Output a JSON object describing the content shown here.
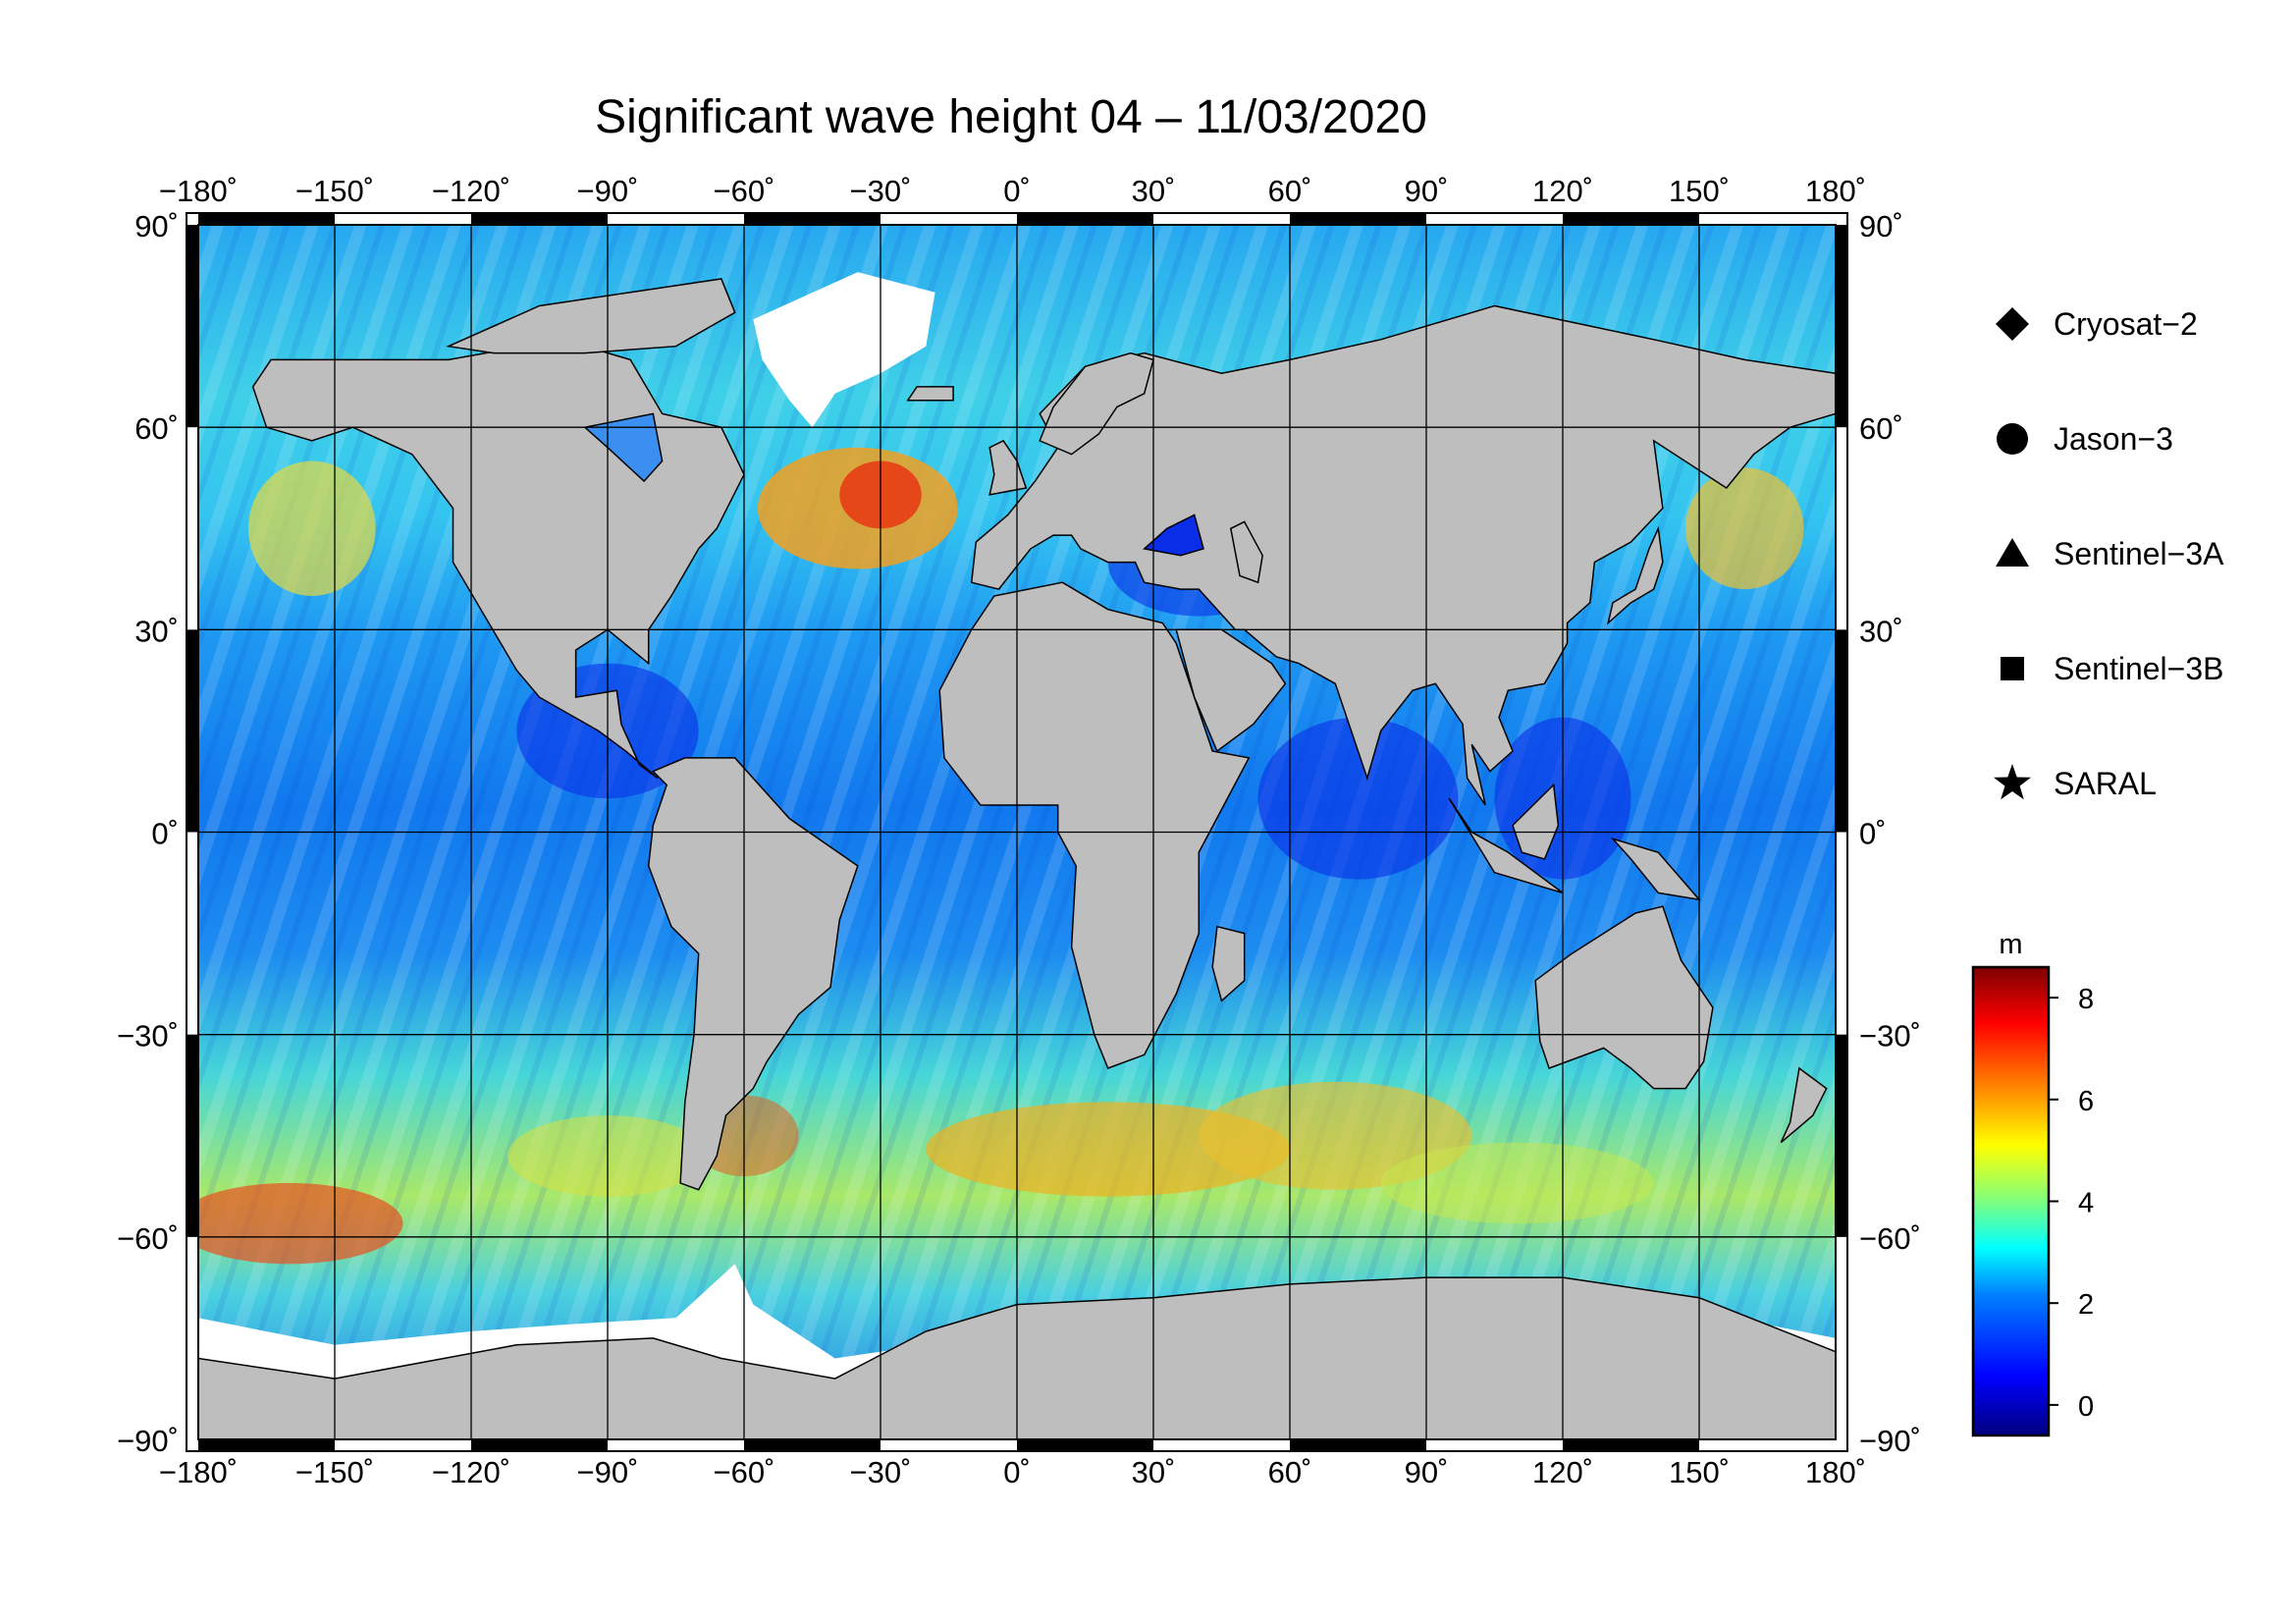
{
  "title": "Significant wave height 04 – 11/03/2020",
  "map": {
    "lon_range": [
      -180,
      180
    ],
    "lat_range": [
      -90,
      90
    ],
    "lon_ticks": [
      -180,
      -150,
      -120,
      -90,
      -60,
      -30,
      0,
      30,
      60,
      90,
      120,
      150,
      180
    ],
    "lat_ticks": [
      90,
      60,
      30,
      0,
      -30,
      -60,
      -90
    ],
    "lon_tick_labels": [
      "−180˚",
      "−150˚",
      "−120˚",
      "−90˚",
      "−60˚",
      "−30˚",
      "0˚",
      "30˚",
      "60˚",
      "90˚",
      "120˚",
      "150˚",
      "180˚"
    ],
    "lat_tick_labels": [
      "90˚",
      "60˚",
      "30˚",
      "0˚",
      "−30˚",
      "−60˚",
      "−90˚"
    ],
    "grid": true,
    "land_color": "#bebebe",
    "ice_color": "#ffffff",
    "projection": "equirectangular"
  },
  "legend": {
    "placement": "right",
    "items": [
      {
        "label": "Cryosat−2",
        "symbol": "diamond-icon"
      },
      {
        "label": "Jason−3",
        "symbol": "circle-icon"
      },
      {
        "label": "Sentinel−3A",
        "symbol": "triangle-icon"
      },
      {
        "label": "Sentinel−3B",
        "symbol": "square-icon"
      },
      {
        "label": "SARAL",
        "symbol": "star-icon"
      }
    ]
  },
  "colorbar": {
    "unit": "m",
    "range": [
      -0.6,
      8.6
    ],
    "tick_values": [
      0,
      2,
      4,
      6,
      8
    ],
    "tick_labels": [
      "0",
      "2",
      "4",
      "6",
      "8"
    ],
    "colormap": [
      "#00007f",
      "#0000ff",
      "#007fff",
      "#00ffff",
      "#7fff7f",
      "#ffff00",
      "#ff7f00",
      "#ff0000",
      "#7f0000"
    ]
  }
}
